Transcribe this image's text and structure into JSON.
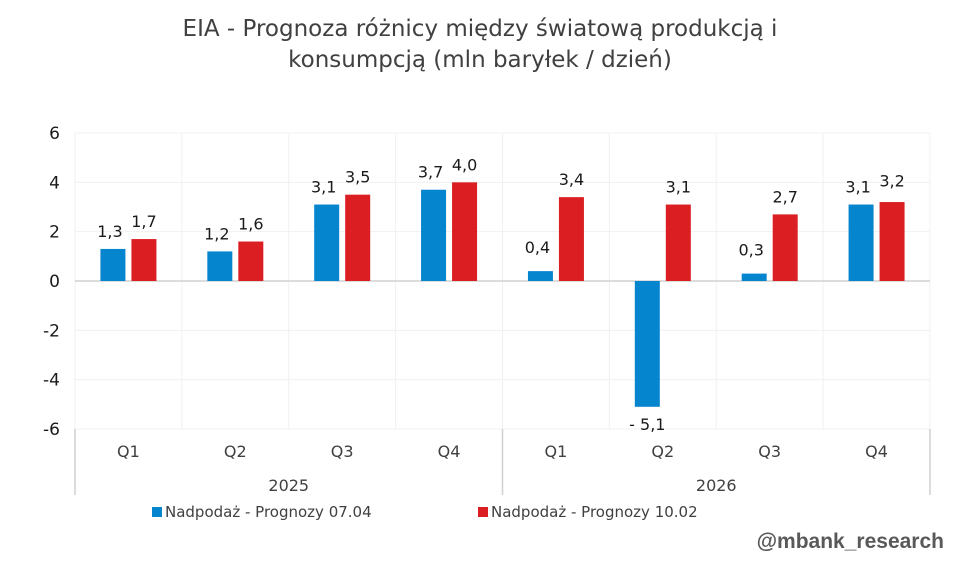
{
  "chart_data": {
    "type": "bar",
    "title": "EIA - Prognoza różnicy między światową produkcją i konsumpcją (mln baryłek / dzień)",
    "title_lines": [
      "EIA - Prognoza różnicy między światową produkcją i",
      "konsumpcją (mln baryłek / dzień)"
    ],
    "categories": [
      "Q1",
      "Q2",
      "Q3",
      "Q4",
      "Q1",
      "Q2",
      "Q3",
      "Q4"
    ],
    "groups": [
      {
        "label": "2025",
        "count": 4
      },
      {
        "label": "2026",
        "count": 4
      }
    ],
    "series": [
      {
        "name": "Nadpodaż - Prognozy 07.04",
        "color": "#0685CF",
        "values": [
          1.3,
          1.2,
          3.1,
          3.7,
          0.4,
          -5.1,
          0.3,
          3.1
        ],
        "labels": [
          "1,3",
          "1,2",
          "3,1",
          "3,7",
          "0,4",
          "- 5,1",
          "0,3",
          "3,1"
        ]
      },
      {
        "name": "Nadpodaż - Prognozy 10.02",
        "color": "#DB1E22",
        "values": [
          1.7,
          1.6,
          3.5,
          4.0,
          3.4,
          3.1,
          2.7,
          3.2
        ],
        "labels": [
          "1,7",
          "1,6",
          "3,5",
          "4,0",
          "3,4",
          "3,1",
          "2,7",
          "3,2"
        ]
      }
    ],
    "yticks": [
      6,
      4,
      2,
      0,
      -2,
      -4,
      -6
    ],
    "ytick_labels": [
      "6",
      "4",
      "2",
      "0",
      "-2",
      "-4",
      "-6"
    ],
    "ylim": [
      -6,
      6
    ],
    "xlabel": "",
    "ylabel": "",
    "grid": true,
    "legend_position": "bottom"
  },
  "watermark": "@mbank_research"
}
